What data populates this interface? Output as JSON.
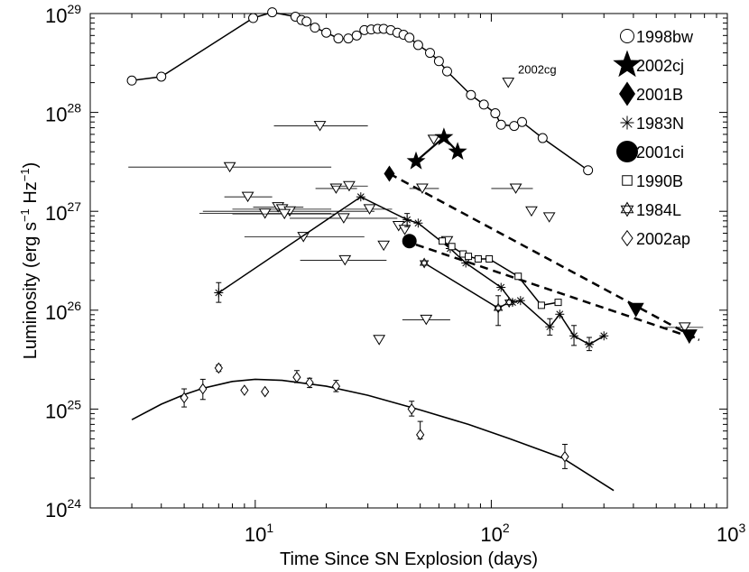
{
  "chart_data": {
    "type": "scatter",
    "xscale": "log",
    "yscale": "log",
    "xlim": [
      2,
      1000
    ],
    "ylim": [
      1e+24,
      1e+29
    ],
    "xlabel": "Time Since SN Explosion  (days)",
    "ylabel": "Luminosity  (erg s",
    "ylabel_parts": {
      "pre": "Luminosity  (erg s",
      "exp1": "−1",
      "mid": " Hz",
      "exp2": "−1",
      "post": ")"
    },
    "x_ticks": [
      {
        "value": 10,
        "base": "10",
        "exp": "1"
      },
      {
        "value": 100,
        "base": "10",
        "exp": "2"
      },
      {
        "value": 1000,
        "base": "10",
        "exp": "3"
      }
    ],
    "y_ticks": [
      {
        "value": 1e+24,
        "base": "10",
        "exp": "24"
      },
      {
        "value": 1e+25,
        "base": "10",
        "exp": "25"
      },
      {
        "value": 1e+26,
        "base": "10",
        "exp": "26"
      },
      {
        "value": 1e+27,
        "base": "10",
        "exp": "27"
      },
      {
        "value": 1e+28,
        "base": "10",
        "exp": "28"
      },
      {
        "value": 1e+29,
        "base": "10",
        "exp": "29"
      }
    ],
    "annotations": [
      {
        "text": "2002cg",
        "x": 122,
        "y": 2.1e+28
      }
    ],
    "legend": [
      "1998bw",
      "2002cj",
      "2001B",
      "1983N",
      "2001ci",
      "1990B",
      "1984L",
      "2002ap"
    ],
    "series": [
      {
        "name": "1998bw",
        "marker": "circle-open",
        "line": "solid",
        "points": [
          [
            3.0,
            2.1e+28
          ],
          [
            4.0,
            2.3e+28
          ],
          [
            9.8,
            9e+28
          ],
          [
            11.8,
            1.03e+29
          ],
          [
            14.8,
            9.3e+28
          ],
          [
            15.7,
            8.6e+28
          ],
          [
            16.5,
            8.3e+28
          ],
          [
            17.9,
            7.2e+28
          ],
          [
            20.0,
            6.4e+28
          ],
          [
            22.5,
            5.6e+28
          ],
          [
            24.8,
            5.6e+28
          ],
          [
            26.9,
            6e+28
          ],
          [
            29.0,
            6.8e+28
          ],
          [
            31.0,
            6.9e+28
          ],
          [
            33.0,
            7e+28
          ],
          [
            35.0,
            7e+28
          ],
          [
            37.5,
            6.8e+28
          ],
          [
            40.0,
            6.4e+28
          ],
          [
            42.5,
            6.1e+28
          ],
          [
            45.0,
            5.7e+28
          ],
          [
            49.0,
            4.8e+28
          ],
          [
            55.0,
            4e+28
          ],
          [
            60.0,
            3.3e+28
          ],
          [
            65.0,
            2.6e+28
          ],
          [
            82.0,
            1.5e+28
          ],
          [
            93.0,
            1.2e+28
          ],
          [
            104.0,
            9.8e+27
          ],
          [
            110.0,
            7.5e+27
          ],
          [
            125.0,
            7.3e+27
          ],
          [
            135.0,
            8e+27
          ],
          [
            165.0,
            5.5e+27
          ],
          [
            257.0,
            2.6e+27
          ]
        ]
      },
      {
        "name": "2002cj",
        "marker": "star-filled",
        "line": "solid",
        "points": [
          [
            48.0,
            3.2e+27
          ],
          [
            63.0,
            5.6e+27
          ],
          [
            72.0,
            4e+27
          ]
        ]
      },
      {
        "name": "2001B",
        "marker": "diamond-filled",
        "line": "dashed",
        "points": [
          [
            37.0,
            2.4e+27
          ]
        ],
        "fit": [
          [
            37.0,
            2.4e+27
          ],
          [
            760.0,
            5e+25
          ]
        ]
      },
      {
        "name": "1983N",
        "marker": "asterisk",
        "line": "solid",
        "points": [
          [
            7.0,
            1.5e+26
          ],
          [
            28.0,
            1.4e+27
          ],
          [
            44.0,
            8.2e+26
          ],
          [
            49.0,
            7.6e+26
          ],
          [
            67.0,
            4.2e+26
          ],
          [
            78.0,
            3e+26
          ],
          [
            110.0,
            1.7e+26
          ],
          [
            123.0,
            1.2e+26
          ],
          [
            133.0,
            1.25e+26
          ],
          [
            177.0,
            6.8e+25
          ],
          [
            195.0,
            9.1e+25
          ],
          [
            224.0,
            5.5e+25
          ],
          [
            260.0,
            4.5e+25
          ],
          [
            300.0,
            5.5e+25
          ]
        ],
        "errors": [
          [
            7.0,
            1.2e+26,
            1.9e+26
          ],
          [
            44.0,
            7e+26,
            9.5e+26
          ],
          [
            177.0,
            5.6e+25,
            8.2e+25
          ],
          [
            224.0,
            4.4e+25,
            7e+25
          ],
          [
            260.0,
            3.9e+25,
            5.3e+25
          ]
        ]
      },
      {
        "name": "2001ci",
        "marker": "circle-filled",
        "line": "dashed",
        "points": [
          [
            45.0,
            5e+26
          ]
        ],
        "fit": [
          [
            48.0,
            4.6e+26
          ],
          [
            760.0,
            5e+25
          ]
        ]
      },
      {
        "name": "1990B",
        "marker": "square-open",
        "line": "solid",
        "points": [
          [
            62.0,
            5e+26
          ],
          [
            68.0,
            4.4e+26
          ],
          [
            76.0,
            3.7e+26
          ],
          [
            80.0,
            3.5e+26
          ],
          [
            88.0,
            3.3e+26
          ],
          [
            98.0,
            3.3e+26
          ],
          [
            130.0,
            2.2e+26
          ],
          [
            163.0,
            1.12e+26
          ],
          [
            192.0,
            1.2e+26
          ]
        ]
      },
      {
        "name": "1984L",
        "marker": "star-open",
        "line": "solid",
        "points": [
          [
            52.0,
            3e+26
          ],
          [
            107.0,
            1.05e+26
          ],
          [
            119.0,
            1.2e+26
          ]
        ],
        "errors": [
          [
            107.0,
            7e+25,
            1.4e+26
          ]
        ]
      },
      {
        "name": "2002ap",
        "marker": "diamond-open",
        "line": "model",
        "points": [
          [
            5.0,
            1.3e+25
          ],
          [
            6.0,
            1.6e+25
          ],
          [
            7.0,
            2.6e+25
          ],
          [
            9.0,
            1.55e+25
          ],
          [
            11.0,
            1.5e+25
          ],
          [
            15.0,
            2.1e+25
          ],
          [
            17.0,
            1.85e+25
          ],
          [
            22.0,
            1.7e+25
          ],
          [
            46.0,
            1e+25
          ],
          [
            50.0,
            5.5e+24
          ],
          [
            205.0,
            3.3e+24
          ]
        ],
        "errors": [
          [
            5.0,
            1.05e+25,
            1.6e+25
          ],
          [
            6.0,
            1.25e+25,
            2e+25
          ],
          [
            7.0,
            2.4e+25,
            2.8e+25
          ],
          [
            15.0,
            1.85e+25,
            2.45e+25
          ],
          [
            17.0,
            1.65e+25,
            2.05e+25
          ],
          [
            22.0,
            1.5e+25,
            1.95e+25
          ],
          [
            46.0,
            8.5e+24,
            1.2e+25
          ],
          [
            50.0,
            5e+24,
            7.5e+24
          ],
          [
            205.0,
            2.5e+24,
            4.4e+24
          ]
        ],
        "model": [
          [
            3.0,
            7.8e+24
          ],
          [
            4.0,
            1.12e+25
          ],
          [
            5.0,
            1.4e+25
          ],
          [
            6.0,
            1.62e+25
          ],
          [
            8.0,
            1.9e+25
          ],
          [
            10.0,
            2e+25
          ],
          [
            13.0,
            1.95e+25
          ],
          [
            20.0,
            1.7e+25
          ],
          [
            30.0,
            1.38e+25
          ],
          [
            50.0,
            9.8e+24
          ],
          [
            80.0,
            7e+24
          ],
          [
            120.0,
            5e+24
          ],
          [
            200.0,
            3.2e+24
          ],
          [
            330.0,
            1.5e+24
          ]
        ]
      }
    ],
    "upper_limits": [
      [
        18.8,
        7.3e+27,
        12.0,
        30.0
      ],
      [
        7.8,
        2.8e+27,
        2.9,
        21.0
      ],
      [
        9.3,
        1.4e+27,
        7.4,
        11.8
      ],
      [
        22.0,
        1.7e+27,
        18.0,
        27.0
      ],
      [
        25.0,
        1.8e+27,
        21.0,
        30.0
      ],
      [
        12.5,
        1.1e+27,
        9.8,
        16.0
      ],
      [
        13.0,
        1.05e+27,
        8.0,
        21.0
      ],
      [
        14.0,
        1e+27,
        6.0,
        32.0
      ],
      [
        11.0,
        9.5e+26,
        5.8,
        21.0
      ],
      [
        13.3,
        9.4e+26,
        8.0,
        22.0
      ],
      [
        16.0,
        5.5e+26,
        9.0,
        29.0
      ],
      [
        23.7,
        8.5e+26,
        14.0,
        40.0
      ],
      [
        30.5,
        1.05e+27,
        24.0,
        38.0
      ],
      [
        24.0,
        3.2e+26,
        15.5,
        36.0
      ],
      [
        35.0,
        4.5e+26,
        null,
        null
      ],
      [
        33.5,
        5e+25,
        null,
        null
      ],
      [
        40.5,
        7.1e+26,
        null,
        null
      ],
      [
        43.0,
        6.5e+26,
        null,
        null
      ],
      [
        51.0,
        1.7e+27,
        45.0,
        60.0
      ],
      [
        57.0,
        5.3e+27,
        null,
        null
      ],
      [
        65.0,
        5e+26,
        null,
        null
      ],
      [
        118.0,
        2e+28,
        null,
        null
      ],
      [
        127.0,
        1.7e+27,
        100.0,
        150.0
      ],
      [
        148.0,
        1e+27,
        null,
        null
      ],
      [
        176.0,
        8.7e+26,
        null,
        null
      ],
      [
        53.0,
        8e+25,
        42.0,
        67.0
      ],
      [
        660.0,
        6.7e+25,
        540.0,
        790.0
      ]
    ],
    "filled_limits": [
      [
        410.0,
        1e+26
      ],
      [
        690.0,
        5.4e+25
      ]
    ]
  }
}
